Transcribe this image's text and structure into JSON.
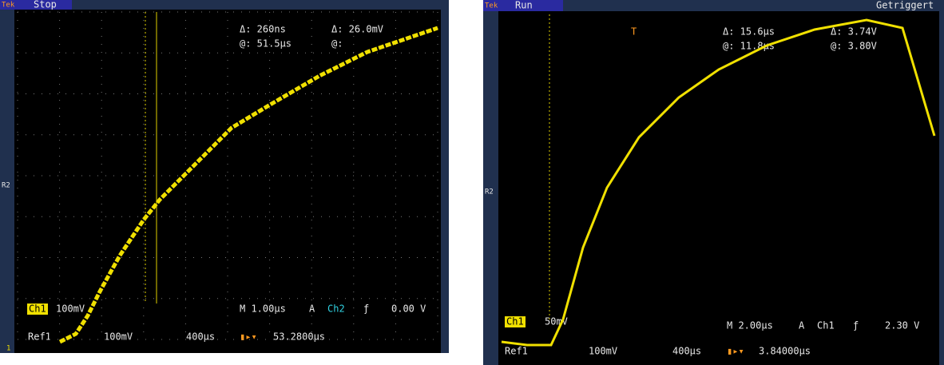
{
  "left": {
    "brand": "Tek",
    "status": "Stop",
    "cursor1": {
      "delta_t": "Δ: 260ns",
      "at_t": "@: 51.5µs"
    },
    "cursor2": {
      "delta_v": "Δ: 26.0mV",
      "at_v": "@:"
    },
    "ref_marker": "R2",
    "channel": "Ch1",
    "ch_scale": "100mV",
    "timebase": "M 1.00µs",
    "trig_mode": "A",
    "trig_source": "Ch2",
    "trig_slope": "ƒ",
    "trig_level": "0.00 V",
    "ref": "Ref1",
    "ref_scale": "100mV",
    "ref_time": "400µs",
    "position": "53.2800µs",
    "ground": "1"
  },
  "right": {
    "brand": "Tek",
    "status": "Run",
    "trigger_state": "Getriggert",
    "cursor1": {
      "delta_t": "Δ: 15.6µs",
      "at_t": "@: 11.8µs"
    },
    "cursor2": {
      "delta_v": "Δ: 3.74V",
      "at_v": "@: 3.80V"
    },
    "trigger_marker": "T",
    "ref_marker": "R2",
    "channel": "Ch1",
    "ch_scale": "50mV",
    "timebase": "M 2.00µs",
    "trig_mode": "A",
    "trig_source": "Ch1",
    "trig_slope": "ƒ",
    "trig_level": "2.30 V",
    "ref": "Ref1",
    "ref_scale": "100mV",
    "ref_time": "400µs",
    "position": "3.84000µs"
  }
}
